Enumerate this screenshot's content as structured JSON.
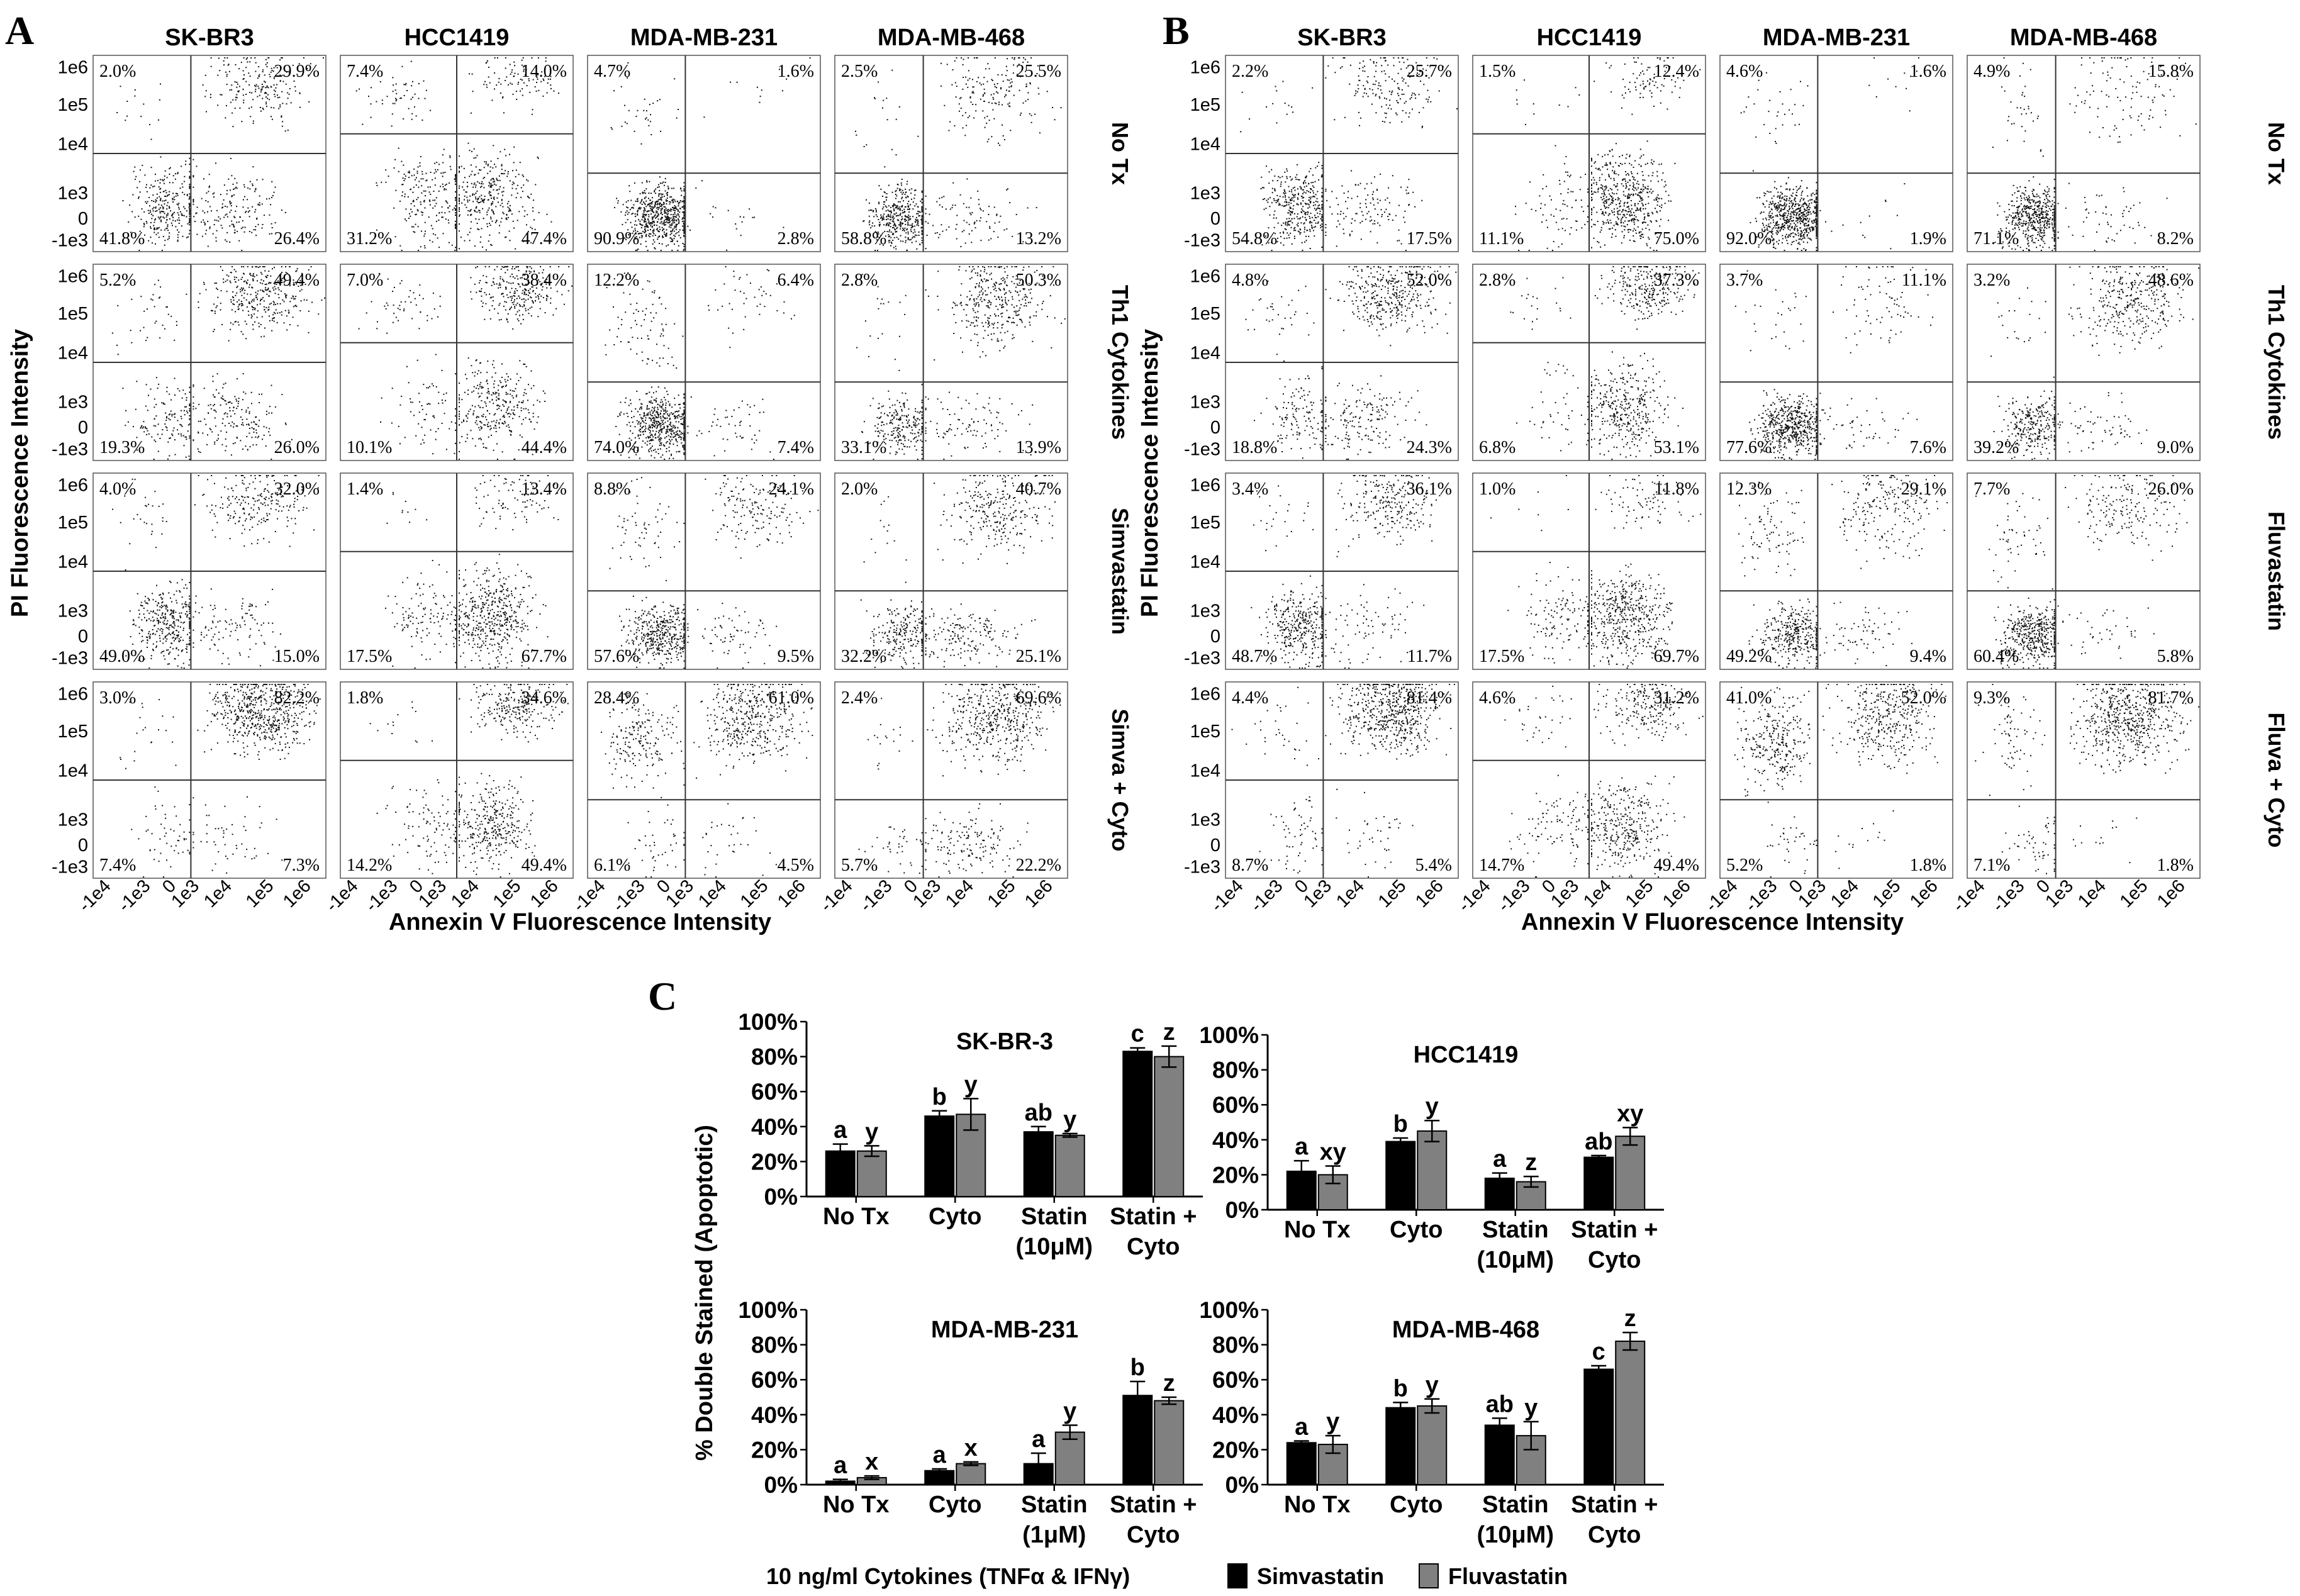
{
  "chart_data": [
    {
      "panel": "A",
      "type": "scatter",
      "columns": [
        "SK-BR3",
        "HCC1419",
        "MDA-MB-231",
        "MDA-MB-468"
      ],
      "rows": [
        "No Tx",
        "Th1 Cytokines",
        "Simvastatin",
        "Simva + Cyto"
      ],
      "ylabel": "PI Fluorescence Intensity",
      "xlabel": "Annexin V Fluorescence Intensity",
      "y_ticks": [
        "1e6",
        "1e5",
        "1e4",
        "1e3",
        "0",
        "-1e3"
      ],
      "x_ticks": [
        "-1e4",
        "-1e3",
        "0",
        "1e3",
        "1e4",
        "1e5",
        "1e6"
      ],
      "quadrants": [
        [
          [
            "2.0%",
            "29.9%",
            "41.8%",
            "26.4%"
          ],
          [
            "7.4%",
            "14.0%",
            "31.2%",
            "47.4%"
          ],
          [
            "4.7%",
            "1.6%",
            "90.9%",
            "2.8%"
          ],
          [
            "2.5%",
            "25.5%",
            "58.8%",
            "13.2%"
          ]
        ],
        [
          [
            "5.2%",
            "49.4%",
            "19.3%",
            "26.0%"
          ],
          [
            "7.0%",
            "38.4%",
            "10.1%",
            "44.4%"
          ],
          [
            "12.2%",
            "6.4%",
            "74.0%",
            "7.4%"
          ],
          [
            "2.8%",
            "50.3%",
            "33.1%",
            "13.9%"
          ]
        ],
        [
          [
            "4.0%",
            "32.0%",
            "49.0%",
            "15.0%"
          ],
          [
            "1.4%",
            "13.4%",
            "17.5%",
            "67.7%"
          ],
          [
            "8.8%",
            "24.1%",
            "57.6%",
            "9.5%"
          ],
          [
            "2.0%",
            "40.7%",
            "32.2%",
            "25.1%"
          ]
        ],
        [
          [
            "3.0%",
            "82.2%",
            "7.4%",
            "7.3%"
          ],
          [
            "1.8%",
            "34.6%",
            "14.2%",
            "49.4%"
          ],
          [
            "28.4%",
            "61.0%",
            "6.1%",
            "4.5%"
          ],
          [
            "2.4%",
            "69.6%",
            "5.7%",
            "22.2%"
          ]
        ]
      ]
    },
    {
      "panel": "B",
      "type": "scatter",
      "columns": [
        "SK-BR3",
        "HCC1419",
        "MDA-MB-231",
        "MDA-MB-468"
      ],
      "rows": [
        "No Tx",
        "Th1 Cytokines",
        "Fluvastatin",
        "Fluva + Cyto"
      ],
      "ylabel": "PI Fluorescence Intensity",
      "xlabel": "Annexin V Fluorescence Intensity",
      "y_ticks": [
        "1e6",
        "1e5",
        "1e4",
        "1e3",
        "0",
        "-1e3"
      ],
      "x_ticks": [
        "-1e4",
        "-1e3",
        "0",
        "1e3",
        "1e4",
        "1e5",
        "1e6"
      ],
      "quadrants": [
        [
          [
            "2.2%",
            "25.7%",
            "54.8%",
            "17.5%"
          ],
          [
            "1.5%",
            "12.4%",
            "11.1%",
            "75.0%"
          ],
          [
            "4.6%",
            "1.6%",
            "92.0%",
            "1.9%"
          ],
          [
            "4.9%",
            "15.8%",
            "71.1%",
            "8.2%"
          ]
        ],
        [
          [
            "4.8%",
            "52.0%",
            "18.8%",
            "24.3%"
          ],
          [
            "2.8%",
            "37.3%",
            "6.8%",
            "53.1%"
          ],
          [
            "3.7%",
            "11.1%",
            "77.6%",
            "7.6%"
          ],
          [
            "3.2%",
            "48.6%",
            "39.2%",
            "9.0%"
          ]
        ],
        [
          [
            "3.4%",
            "36.1%",
            "48.7%",
            "11.7%"
          ],
          [
            "1.0%",
            "11.8%",
            "17.5%",
            "69.7%"
          ],
          [
            "12.3%",
            "29.1%",
            "49.2%",
            "9.4%"
          ],
          [
            "7.7%",
            "26.0%",
            "60.4%",
            "5.8%"
          ]
        ],
        [
          [
            "4.4%",
            "81.4%",
            "8.7%",
            "5.4%"
          ],
          [
            "4.6%",
            "31.2%",
            "14.7%",
            "49.4%"
          ],
          [
            "41.0%",
            "52.0%",
            "5.2%",
            "1.8%"
          ],
          [
            "9.3%",
            "81.7%",
            "7.1%",
            "1.8%"
          ]
        ]
      ]
    },
    {
      "panel": "C",
      "type": "bar",
      "ylabel": "% Double Stained (Apoptotic)",
      "y_ticks": [
        "100%",
        "80%",
        "60%",
        "40%",
        "20%",
        "0%"
      ],
      "ylim": [
        0,
        100
      ],
      "xlabel": "10 ng/ml Cytokines (TNFα & IFNγ)",
      "legend": [
        "Simvastatin",
        "Fluvastatin"
      ],
      "subplots": [
        {
          "title": "SK-BR-3",
          "categories": [
            "No Tx",
            "Cyto",
            "Statin (10μM)",
            "Statin + Cyto"
          ],
          "series": [
            {
              "name": "Simvastatin",
              "values": [
                26,
                46,
                37,
                83
              ],
              "errors": [
                4,
                3,
                3,
                2
              ],
              "letters": [
                "a",
                "b",
                "ab",
                "c"
              ]
            },
            {
              "name": "Fluvastatin",
              "values": [
                26,
                47,
                35,
                80
              ],
              "errors": [
                3,
                9,
                1,
                6
              ],
              "letters": [
                "y",
                "y",
                "y",
                "z"
              ]
            }
          ]
        },
        {
          "title": "HCC1419",
          "categories": [
            "No Tx",
            "Cyto",
            "Statin (10μM)",
            "Statin + Cyto"
          ],
          "series": [
            {
              "name": "Simvastatin",
              "values": [
                22,
                39,
                18,
                30
              ],
              "errors": [
                6,
                2,
                3,
                1
              ],
              "letters": [
                "a",
                "b",
                "a",
                "ab"
              ]
            },
            {
              "name": "Fluvastatin",
              "values": [
                20,
                45,
                16,
                42
              ],
              "errors": [
                5,
                6,
                3,
                5
              ],
              "letters": [
                "xy",
                "y",
                "z",
                "xy"
              ]
            }
          ]
        },
        {
          "title": "MDA-MB-231",
          "categories": [
            "No Tx",
            "Cyto",
            "Statin (1μM)",
            "Statin + Cyto"
          ],
          "series": [
            {
              "name": "Simvastatin",
              "values": [
                2,
                8,
                12,
                51
              ],
              "errors": [
                1,
                1,
                6,
                8
              ],
              "letters": [
                "a",
                "a",
                "a",
                "b"
              ]
            },
            {
              "name": "Fluvastatin",
              "values": [
                4,
                12,
                30,
                48
              ],
              "errors": [
                1,
                1,
                4,
                2
              ],
              "letters": [
                "x",
                "x",
                "y",
                "z"
              ]
            }
          ]
        },
        {
          "title": "MDA-MB-468",
          "categories": [
            "No Tx",
            "Cyto",
            "Statin (10μM)",
            "Statin + Cyto"
          ],
          "series": [
            {
              "name": "Simvastatin",
              "values": [
                24,
                44,
                34,
                66
              ],
              "errors": [
                1,
                3,
                4,
                2
              ],
              "letters": [
                "a",
                "b",
                "ab",
                "c"
              ]
            },
            {
              "name": "Fluvastatin",
              "values": [
                23,
                45,
                28,
                82
              ],
              "errors": [
                5,
                4,
                8,
                5
              ],
              "letters": [
                "y",
                "y",
                "y",
                "z"
              ]
            }
          ]
        }
      ]
    }
  ],
  "colors": {
    "simvastatin": "#000000",
    "fluvastatin": "#808080"
  }
}
